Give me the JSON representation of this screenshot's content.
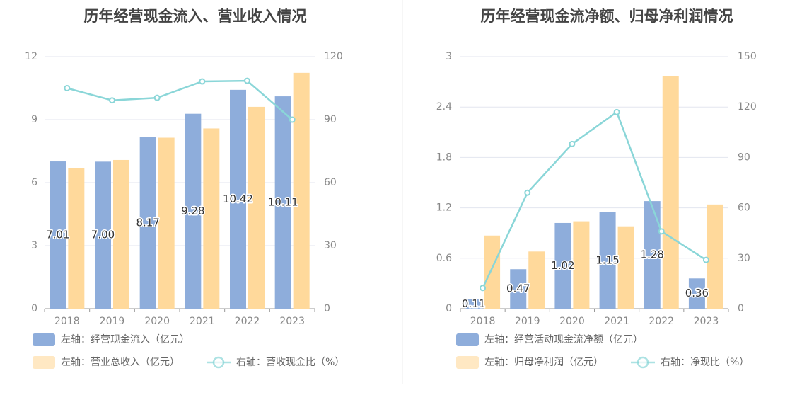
{
  "colors": {
    "left_bar": "#8eaddb",
    "right_bar": "#ffd99b",
    "line": "#8ad6d8",
    "grid": "#e3e6ef",
    "divider": "#eeeeee"
  },
  "chart_data": [
    {
      "type": "bar+line",
      "title": "历年经营现金流入、营业收入情况",
      "categories": [
        "2018",
        "2019",
        "2020",
        "2021",
        "2022",
        "2023"
      ],
      "left_axis": {
        "range": [
          0,
          12
        ],
        "ticks": [
          "0",
          "3",
          "6",
          "9",
          "12"
        ]
      },
      "right_axis": {
        "range": [
          0,
          120
        ],
        "ticks": [
          "0",
          "30",
          "60",
          "90",
          "120"
        ]
      },
      "series": [
        {
          "name": "左轴：经营现金流入（亿元）",
          "type": "bar",
          "axis": "left",
          "values": [
            7.01,
            7.0,
            8.17,
            9.28,
            10.42,
            10.11
          ],
          "labels": [
            "7.01",
            "7.00",
            "8.17",
            "9.28",
            "10.42",
            "10.11"
          ]
        },
        {
          "name": "左轴：营业总收入（亿元）",
          "type": "bar",
          "axis": "left",
          "values": [
            6.68,
            7.08,
            8.14,
            8.58,
            9.61,
            11.23
          ]
        },
        {
          "name": "右轴：营收现金比（%）",
          "type": "line",
          "axis": "right",
          "values": [
            105.0,
            99.2,
            100.4,
            108.2,
            108.5,
            90.0
          ]
        }
      ]
    },
    {
      "type": "bar+line",
      "title": "历年经营现金流净额、归母净利润情况",
      "categories": [
        "2018",
        "2019",
        "2020",
        "2021",
        "2022",
        "2023"
      ],
      "left_axis": {
        "range": [
          0,
          3
        ],
        "ticks": [
          "0",
          "0.6",
          "1.2",
          "1.8",
          "2.4",
          "3"
        ]
      },
      "right_axis": {
        "range": [
          0,
          150
        ],
        "ticks": [
          "0",
          "30",
          "60",
          "90",
          "120",
          "150"
        ]
      },
      "series": [
        {
          "name": "左轴：经营活动现金流净额（亿元）",
          "type": "bar",
          "axis": "left",
          "values": [
            0.11,
            0.47,
            1.02,
            1.15,
            1.28,
            0.36
          ],
          "labels": [
            "0.11",
            "0.47",
            "1.02",
            "1.15",
            "1.28",
            "0.36"
          ]
        },
        {
          "name": "左轴：归母净利润（亿元）",
          "type": "bar",
          "axis": "left",
          "values": [
            0.87,
            0.68,
            1.04,
            0.98,
            2.77,
            1.24
          ]
        },
        {
          "name": "右轴：净现比（%）",
          "type": "line",
          "axis": "right",
          "values": [
            12.3,
            69.0,
            98.0,
            117.0,
            46.0,
            29.0
          ]
        }
      ]
    }
  ]
}
